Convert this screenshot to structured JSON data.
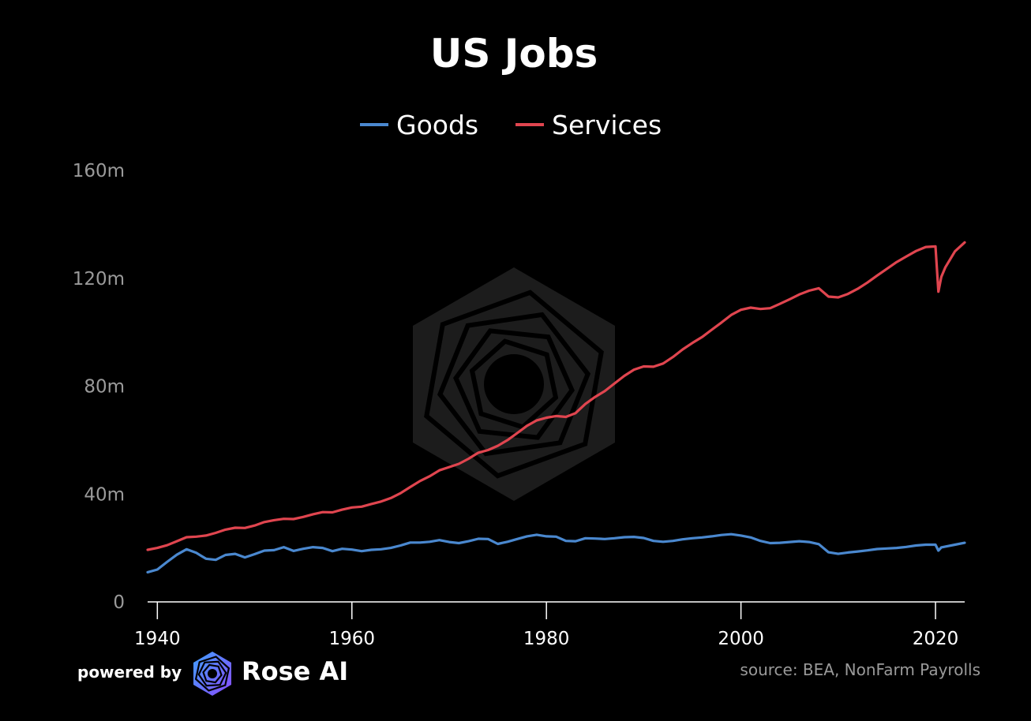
{
  "colors": {
    "goods": "#4a88cf",
    "services": "#e0454f",
    "background": "#000000",
    "watermark": "#1c1c1c"
  },
  "footer": {
    "powered_label": "powered by",
    "brand": "Rose AI",
    "brand_icon": "rose-ai-logo-icon",
    "source": "source: BEA, NonFarm Payrolls"
  },
  "chart_data": {
    "type": "line",
    "title": "US Jobs",
    "xlabel": "",
    "ylabel": "",
    "xlim": [
      1939,
      2023
    ],
    "ylim": [
      0,
      160
    ],
    "x_ticks": [
      1940,
      1960,
      1980,
      2000,
      2020
    ],
    "x_tick_labels": [
      "1940",
      "1960",
      "1980",
      "2000",
      "2020"
    ],
    "y_ticks": [
      0,
      40,
      80,
      120,
      160
    ],
    "y_tick_labels": [
      "0",
      "40m",
      "80m",
      "120m",
      "160m"
    ],
    "legend_position": "top-center",
    "grid": false,
    "series": [
      {
        "name": "Goods",
        "x": [
          1939,
          1940,
          1941,
          1942,
          1943,
          1944,
          1945,
          1946,
          1947,
          1948,
          1949,
          1950,
          1951,
          1952,
          1953,
          1954,
          1955,
          1956,
          1957,
          1958,
          1959,
          1960,
          1961,
          1962,
          1963,
          1964,
          1965,
          1966,
          1967,
          1968,
          1969,
          1970,
          1971,
          1972,
          1973,
          1974,
          1975,
          1976,
          1977,
          1978,
          1979,
          1980,
          1981,
          1982,
          1983,
          1984,
          1985,
          1986,
          1987,
          1988,
          1989,
          1990,
          1991,
          1992,
          1993,
          1994,
          1995,
          1996,
          1997,
          1998,
          1999,
          2000,
          2001,
          2002,
          2003,
          2004,
          2005,
          2006,
          2007,
          2008,
          2009,
          2010,
          2011,
          2012,
          2013,
          2014,
          2015,
          2016,
          2017,
          2018,
          2019,
          2020,
          2020.3,
          2020.6,
          2021,
          2022,
          2023
        ],
        "values": [
          11.0,
          12.0,
          14.8,
          17.5,
          19.5,
          18.2,
          16.0,
          15.6,
          17.4,
          17.8,
          16.5,
          17.7,
          19.0,
          19.2,
          20.3,
          18.9,
          19.7,
          20.3,
          20.0,
          18.8,
          19.7,
          19.4,
          18.8,
          19.3,
          19.5,
          20.0,
          20.9,
          22.0,
          22.0,
          22.3,
          22.9,
          22.2,
          21.8,
          22.5,
          23.4,
          23.3,
          21.5,
          22.3,
          23.3,
          24.3,
          24.9,
          24.3,
          24.2,
          22.6,
          22.5,
          23.6,
          23.5,
          23.3,
          23.6,
          24.0,
          24.1,
          23.7,
          22.6,
          22.3,
          22.6,
          23.2,
          23.6,
          23.9,
          24.3,
          24.8,
          25.1,
          24.6,
          23.9,
          22.6,
          21.8,
          21.9,
          22.2,
          22.5,
          22.2,
          21.4,
          18.4,
          17.8,
          18.3,
          18.7,
          19.1,
          19.6,
          19.8,
          20.0,
          20.4,
          20.9,
          21.2,
          21.2,
          19.0,
          20.2,
          20.5,
          21.2,
          21.9
        ]
      },
      {
        "name": "Services",
        "x": [
          1939,
          1940,
          1941,
          1942,
          1943,
          1944,
          1945,
          1946,
          1947,
          1948,
          1949,
          1950,
          1951,
          1952,
          1953,
          1954,
          1955,
          1956,
          1957,
          1958,
          1959,
          1960,
          1961,
          1962,
          1963,
          1964,
          1965,
          1966,
          1967,
          1968,
          1969,
          1970,
          1971,
          1972,
          1973,
          1974,
          1975,
          1976,
          1977,
          1978,
          1979,
          1980,
          1981,
          1982,
          1983,
          1984,
          1985,
          1986,
          1987,
          1988,
          1989,
          1990,
          1991,
          1992,
          1993,
          1994,
          1995,
          1996,
          1997,
          1998,
          1999,
          2000,
          2001,
          2002,
          2003,
          2004,
          2005,
          2006,
          2007,
          2008,
          2009,
          2010,
          2011,
          2012,
          2013,
          2014,
          2015,
          2016,
          2017,
          2018,
          2019,
          2020,
          2020.3,
          2020.6,
          2021,
          2022,
          2023
        ],
        "values": [
          19.3,
          20.0,
          21.0,
          22.5,
          24.0,
          24.2,
          24.6,
          25.6,
          26.8,
          27.5,
          27.4,
          28.3,
          29.6,
          30.3,
          30.8,
          30.7,
          31.5,
          32.5,
          33.3,
          33.2,
          34.2,
          35.0,
          35.3,
          36.3,
          37.2,
          38.5,
          40.3,
          42.6,
          44.8,
          46.6,
          48.8,
          50.0,
          51.2,
          53.1,
          55.3,
          56.3,
          57.9,
          60.0,
          62.6,
          65.3,
          67.3,
          68.3,
          68.9,
          68.6,
          70.0,
          73.4,
          76.0,
          78.2,
          81.0,
          83.8,
          86.1,
          87.3,
          87.2,
          88.4,
          90.8,
          93.6,
          96.0,
          98.2,
          100.9,
          103.6,
          106.4,
          108.3,
          109.1,
          108.6,
          108.9,
          110.5,
          112.2,
          114.0,
          115.4,
          116.3,
          113.2,
          112.9,
          114.2,
          116.1,
          118.4,
          121.0,
          123.5,
          126.0,
          128.1,
          130.1,
          131.6,
          131.8,
          115.0,
          120.5,
          124.0,
          130.0,
          133.3
        ]
      }
    ]
  }
}
